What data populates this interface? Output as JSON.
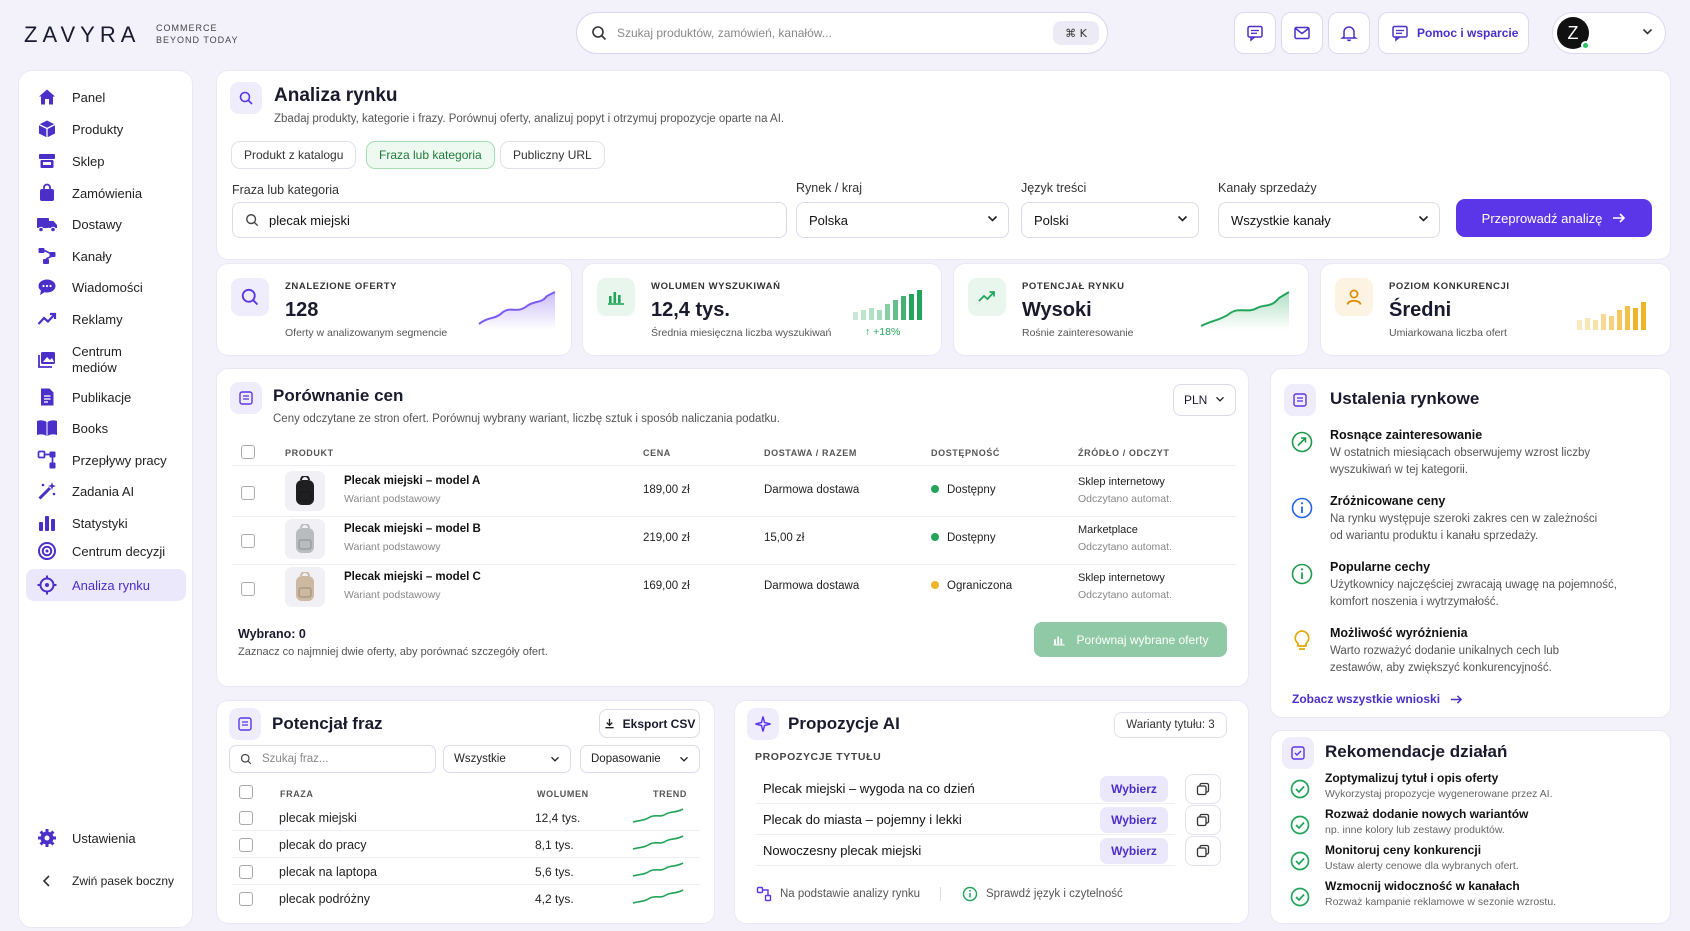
{
  "brand": {
    "logo": "ZAVYRA",
    "tagline_1": "COMMERCE",
    "tagline_2": "BEYOND TODAY"
  },
  "header": {
    "search_placeholder": "Szukaj produktów, zamówień, kanałów...",
    "shortcut": "⌘ K",
    "help_label": "Pomoc i wsparcie",
    "avatar_letter": "Z"
  },
  "sidebar": {
    "items": [
      {
        "label": "Panel",
        "icon": "home-icon"
      },
      {
        "label": "Produkty",
        "icon": "box-icon"
      },
      {
        "label": "Sklep",
        "icon": "store-icon"
      },
      {
        "label": "Zamówienia",
        "icon": "bag-icon"
      },
      {
        "label": "Dostawy",
        "icon": "truck-icon"
      },
      {
        "label": "Kanały",
        "icon": "network-icon"
      },
      {
        "label": "Wiadomości",
        "icon": "chat-icon"
      },
      {
        "label": "Reklamy",
        "icon": "trend-icon"
      },
      {
        "label": "Centrum",
        "label2": "mediów",
        "icon": "media-icon"
      },
      {
        "label": "Publikacje",
        "icon": "document-icon"
      },
      {
        "label": "Books",
        "icon": "book-icon"
      },
      {
        "label": "Przepływy pracy",
        "icon": "workflow-icon"
      },
      {
        "label": "Zadania AI",
        "icon": "magic-wand-icon"
      },
      {
        "label": "Statystyki",
        "icon": "bar-chart-icon"
      },
      {
        "label": "Centrum decyzji",
        "icon": "target-icon"
      },
      {
        "label": "Analiza rynku",
        "icon": "crosshair-icon",
        "active": true
      }
    ],
    "settings": "Ustawienia",
    "collapse": "Zwiń pasek boczny"
  },
  "analysis": {
    "title": "Analiza rynku",
    "subtitle": "Zbadaj produkty, kategorie i frazy. Porównuj oferty, analizuj popyt i otrzymuj propozycje oparte na AI.",
    "tabs": [
      "Produkt z katalogu",
      "Fraza lub kategoria",
      "Publiczny URL"
    ],
    "active_tab": 1,
    "phrase_label": "Fraza lub kategoria",
    "phrase_value": "plecak miejski",
    "market_label": "Rynek / kraj",
    "market_value": "Polska",
    "lang_label": "Język treści",
    "lang_value": "Polski",
    "channels_label": "Kanały sprzedaży",
    "channels_value": "Wszystkie kanały",
    "run_label": "Przeprowadź analizę"
  },
  "stats": [
    {
      "label": "ZNALEZIONE OFERTY",
      "value": "128",
      "desc": "Oferty w analizowanym segmencie"
    },
    {
      "label": "WOLUMEN WYSZUKIWAŃ",
      "value": "12,4 tys.",
      "desc": "Średnia miesięczna liczba wyszukiwań",
      "delta": "↑ +18%"
    },
    {
      "label": "POTENCJAŁ RYNKU",
      "value": "Wysoki",
      "desc": "Rośnie zainteresowanie"
    },
    {
      "label": "POZIOM KONKURENCJI",
      "value": "Średni",
      "desc": "Umiarkowana liczba ofert"
    }
  ],
  "prices": {
    "title": "Porównanie cen",
    "subtitle": "Ceny odczytane ze stron ofert. Porównuj wybrany wariant, liczbę sztuk i sposób naliczania podatku.",
    "currency": "PLN",
    "headers": [
      "PRODUKT",
      "CENA",
      "DOSTAWA / RAZEM",
      "DOSTĘPNOŚĆ",
      "ŹRÓDŁO / ODCZYT"
    ],
    "rows": [
      {
        "name": "Plecak miejski – model A",
        "variant": "Wariant podstawowy",
        "price": "189,00 zł",
        "delivery": "Darmowa dostawa",
        "avail": "Dostępny",
        "avail_color": "#22a55a",
        "source": "Sklep internetowy",
        "read": "Odczytano automat."
      },
      {
        "name": "Plecak miejski – model B",
        "variant": "Wariant podstawowy",
        "price": "219,00 zł",
        "delivery": "15,00 zł",
        "avail": "Dostępny",
        "avail_color": "#22a55a",
        "source": "Marketplace",
        "read": "Odczytano automat."
      },
      {
        "name": "Plecak miejski – model C",
        "variant": "Wariant podstawowy",
        "price": "169,00 zł",
        "delivery": "Darmowa dostawa",
        "avail": "Ograniczona",
        "avail_color": "#f0b429",
        "source": "Sklep internetowy",
        "read": "Odczytano automat."
      }
    ],
    "selected": "Wybrano: 0",
    "hint": "Zaznacz co najmniej dwie oferty, aby porównać szczegóły ofert.",
    "compare_label": "Porównaj wybrane oferty"
  },
  "insights": {
    "title": "Ustalenia rynkowe",
    "items": [
      {
        "title": "Rosnące zainteresowanie",
        "line1": "W ostatnich miesiącach obserwujemy wzrost liczby",
        "line2": "wyszukiwań w tej kategorii.",
        "icon": "trend-up-icon",
        "color": "#1f9a4a"
      },
      {
        "title": "Zróżnicowane ceny",
        "line1": "Na rynku występuje szeroki zakres cen w zależności",
        "line2": "od wariantu produktu i kanału sprzedaży.",
        "icon": "info-icon",
        "color": "#2563eb"
      },
      {
        "title": "Popularne cechy",
        "line1": "Użytkownicy najczęściej zwracają uwagę na pojemność,",
        "line2": "komfort noszenia i wytrzymałość.",
        "icon": "info-green-icon",
        "color": "#1f9a4a"
      },
      {
        "title": "Możliwość wyróżnienia",
        "line1": "Warto rozważyć dodanie unikalnych cech lub",
        "line2": "zestawów, aby zwiększyć konkurencyjność.",
        "icon": "lightbulb-icon",
        "color": "#e0a800"
      }
    ],
    "link": "Zobacz wszystkie wnioski"
  },
  "phrases": {
    "title": "Potencjał fraz",
    "export": "Eksport CSV",
    "search_placeholder": "Szukaj fraz...",
    "filter": "Wszystkie",
    "sort": "Dopasowanie",
    "headers": [
      "FRAZA",
      "WOLUMEN",
      "TREND"
    ],
    "rows": [
      {
        "phrase": "plecak miejski",
        "volume": "12,4 tys."
      },
      {
        "phrase": "plecak do pracy",
        "volume": "8,1 tys."
      },
      {
        "phrase": "plecak na laptopa",
        "volume": "5,6 tys."
      },
      {
        "phrase": "plecak podróżny",
        "volume": "4,2 tys."
      }
    ]
  },
  "ai": {
    "title": "Propozycje AI",
    "variants": "Warianty tytułu: 3",
    "section": "PROPOZYCJE TYTUŁU",
    "titles": [
      "Plecak miejski – wygoda na co dzień",
      "Plecak do miasta – pojemny i lekki",
      "Nowoczesny plecak miejski"
    ],
    "pick": "Wybierz",
    "foot1": "Na podstawie analizy rynku",
    "foot2": "Sprawdź język i czytelność"
  },
  "recs": {
    "title": "Rekomendacje działań",
    "items": [
      {
        "title": "Zoptymalizuj tytuł i opis oferty",
        "desc": "Wykorzystaj propozycje wygenerowane przez AI."
      },
      {
        "title": "Rozważ dodanie nowych wariantów",
        "desc": "np. inne kolory lub zestawy produktów."
      },
      {
        "title": "Monitoruj ceny konkurencji",
        "desc": "Ustaw alerty cenowe dla wybranych ofert."
      },
      {
        "title": "Wzmocnij widoczność w kanałach",
        "desc": "Rozważ kampanie reklamowe w sezonie wzrostu."
      }
    ]
  },
  "colors": {
    "accent": "#5b36e8",
    "success": "#22a55a",
    "warning": "#f0b429"
  }
}
